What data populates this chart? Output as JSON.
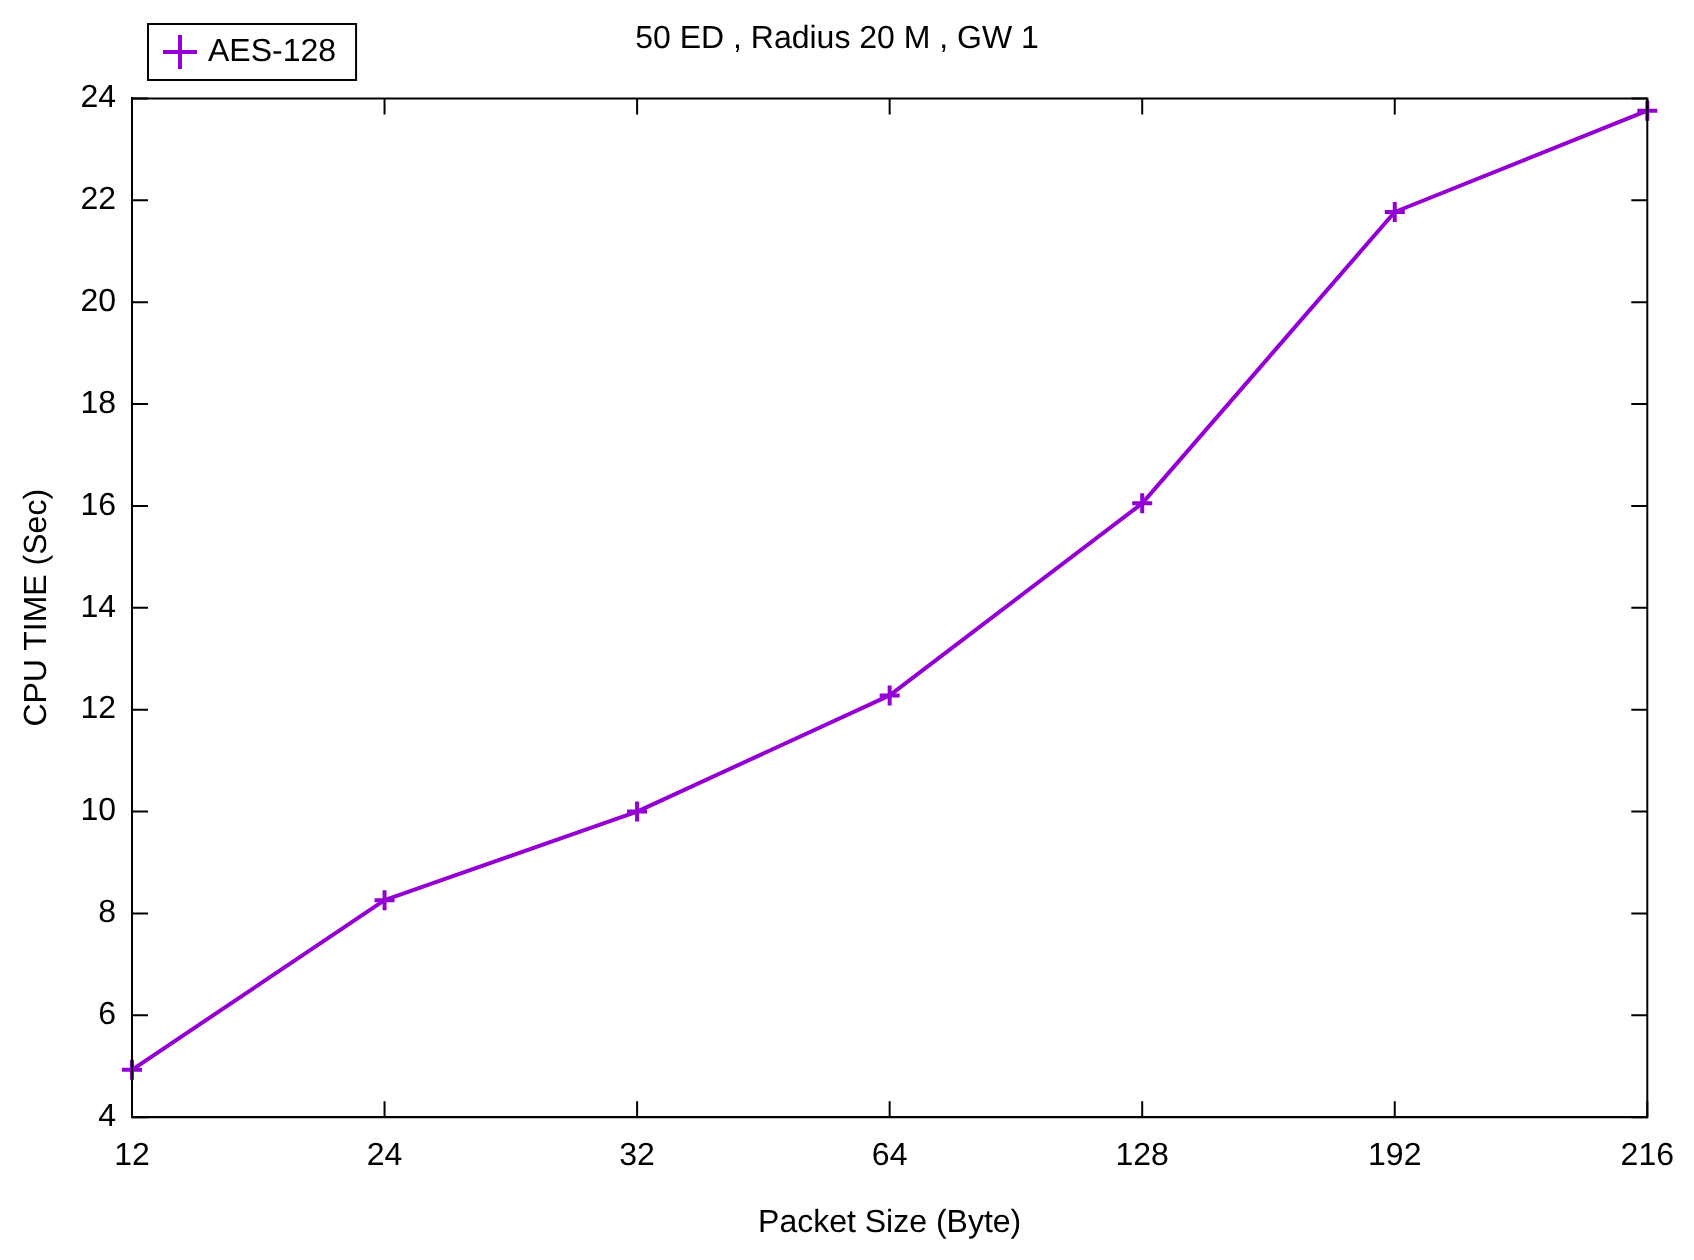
{
  "chart_data": {
    "type": "line",
    "title": "50 ED , Radius 20 M , GW 1",
    "xlabel": "Packet Size (Byte)",
    "ylabel": "CPU TIME (Sec)",
    "categories": [
      "12",
      "24",
      "32",
      "64",
      "128",
      "192",
      "216"
    ],
    "series": [
      {
        "name": "AES-128",
        "color": "#9400d3",
        "values": [
          4.93,
          8.26,
          10.0,
          12.28,
          16.05,
          21.77,
          23.76
        ]
      }
    ],
    "ylim": [
      4,
      24
    ],
    "yticks": [
      4,
      6,
      8,
      10,
      12,
      14,
      16,
      18,
      20,
      22,
      24
    ],
    "grid": false,
    "legend": "top left",
    "marker": "cross",
    "line_style": "solid"
  }
}
